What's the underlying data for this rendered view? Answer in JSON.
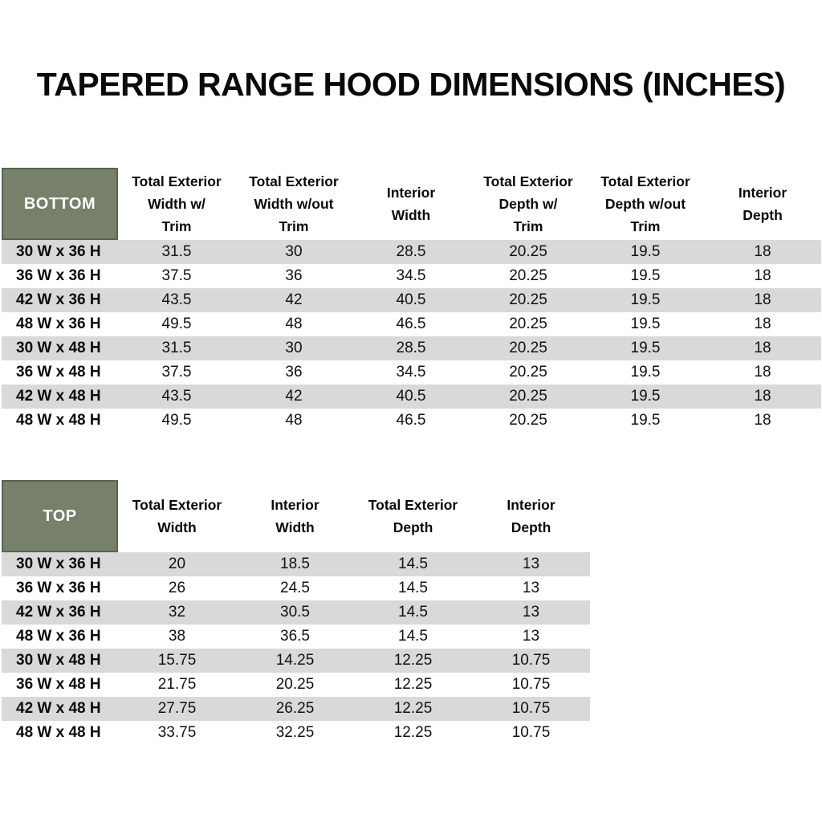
{
  "title": "TAPERED RANGE HOOD DIMENSIONS (INCHES)",
  "colors": {
    "corner_green": "#778069",
    "corner_border": "#5b644e",
    "stripe_gray": "#d9d9d9",
    "background": "#ffffff",
    "text": "#000000",
    "corner_text": "#ffffff"
  },
  "bottom_table": {
    "corner_label": "BOTTOM",
    "columns": [
      "Total Exterior\nWidth w/\nTrim",
      "Total Exterior\nWidth w/out\nTrim",
      "Interior\nWidth",
      "Total Exterior\nDepth w/\nTrim",
      "Total Exterior\nDepth w/out\nTrim",
      "Interior\nDepth"
    ],
    "rows": [
      {
        "label": "30 W x 36 H",
        "values": [
          "31.5",
          "30",
          "28.5",
          "20.25",
          "19.5",
          "18"
        ]
      },
      {
        "label": "36 W x 36 H",
        "values": [
          "37.5",
          "36",
          "34.5",
          "20.25",
          "19.5",
          "18"
        ]
      },
      {
        "label": "42 W x 36 H",
        "values": [
          "43.5",
          "42",
          "40.5",
          "20.25",
          "19.5",
          "18"
        ]
      },
      {
        "label": "48 W x 36 H",
        "values": [
          "49.5",
          "48",
          "46.5",
          "20.25",
          "19.5",
          "18"
        ]
      },
      {
        "label": "30 W x 48 H",
        "values": [
          "31.5",
          "30",
          "28.5",
          "20.25",
          "19.5",
          "18"
        ]
      },
      {
        "label": "36 W x 48 H",
        "values": [
          "37.5",
          "36",
          "34.5",
          "20.25",
          "19.5",
          "18"
        ]
      },
      {
        "label": "42 W x 48 H",
        "values": [
          "43.5",
          "42",
          "40.5",
          "20.25",
          "19.5",
          "18"
        ]
      },
      {
        "label": "48 W x 48 H",
        "values": [
          "49.5",
          "48",
          "46.5",
          "20.25",
          "19.5",
          "18"
        ]
      }
    ]
  },
  "top_table": {
    "corner_label": "TOP",
    "columns": [
      "Total Exterior\nWidth",
      "Interior\nWidth",
      "Total Exterior\nDepth",
      "Interior\nDepth"
    ],
    "rows": [
      {
        "label": "30 W x 36 H",
        "values": [
          "20",
          "18.5",
          "14.5",
          "13"
        ]
      },
      {
        "label": "36 W x 36 H",
        "values": [
          "26",
          "24.5",
          "14.5",
          "13"
        ]
      },
      {
        "label": "42 W x 36 H",
        "values": [
          "32",
          "30.5",
          "14.5",
          "13"
        ]
      },
      {
        "label": "48 W x 36 H",
        "values": [
          "38",
          "36.5",
          "14.5",
          "13"
        ]
      },
      {
        "label": "30 W x 48 H",
        "values": [
          "15.75",
          "14.25",
          "12.25",
          "10.75"
        ]
      },
      {
        "label": "36 W x 48 H",
        "values": [
          "21.75",
          "20.25",
          "12.25",
          "10.75"
        ]
      },
      {
        "label": "42 W x 48 H",
        "values": [
          "27.75",
          "26.25",
          "12.25",
          "10.75"
        ]
      },
      {
        "label": "48 W x 48 H",
        "values": [
          "33.75",
          "32.25",
          "12.25",
          "10.75"
        ]
      }
    ]
  }
}
